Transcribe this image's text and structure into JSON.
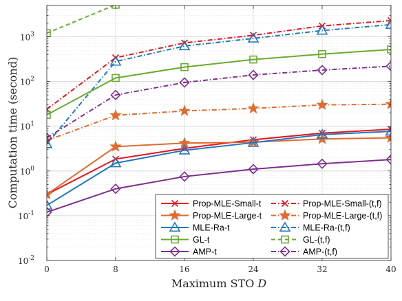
{
  "chart_data": {
    "type": "line",
    "xlabel": "Maximum STO",
    "xlabel_var": "D",
    "ylabel": "Computation time (second)",
    "x": [
      0,
      8,
      16,
      24,
      32,
      40
    ],
    "x_ticks": [
      "0",
      "8",
      "16",
      "24",
      "32",
      "40"
    ],
    "y_scale": "log",
    "xlim": [
      0,
      40
    ],
    "ylim": [
      0.01,
      5000
    ],
    "y_ticks": [
      {
        "base": "10",
        "exp": "-2",
        "value": 0.01
      },
      {
        "base": "10",
        "exp": "-1",
        "value": 0.1
      },
      {
        "base": "10",
        "exp": "0",
        "value": 1
      },
      {
        "base": "10",
        "exp": "1",
        "value": 10
      },
      {
        "base": "10",
        "exp": "2",
        "value": 100
      },
      {
        "base": "10",
        "exp": "3",
        "value": 1000
      }
    ],
    "grid": true,
    "legend_position": "bottom-right",
    "series": [
      {
        "name": "Prop-MLE-Small-t",
        "color": "#e8141c",
        "dash": "solid",
        "marker": "x",
        "values": [
          0.3,
          1.85,
          3.2,
          5.0,
          7.0,
          8.6
        ]
      },
      {
        "name": "Prop-MLE-Small-(t,f)",
        "color": "#e8141c",
        "dash": "dashdot",
        "marker": "x",
        "values": [
          24,
          340,
          730,
          1080,
          1750,
          2300
        ]
      },
      {
        "name": "Prop-MLE-Large-t",
        "color": "#e06a2f",
        "dash": "solid",
        "marker": "star",
        "values": [
          0.3,
          3.5,
          4.2,
          4.4,
          5.2,
          5.5
        ]
      },
      {
        "name": "Prop-MLE-Large-(t,f)",
        "color": "#e06a2f",
        "dash": "dashdot",
        "marker": "star",
        "values": [
          4.8,
          17.5,
          22,
          25,
          30,
          31
        ]
      },
      {
        "name": "MLE-Ra-t",
        "color": "#1f78c0",
        "dash": "solid",
        "marker": "triangle",
        "values": [
          0.17,
          1.5,
          2.9,
          4.3,
          6.5,
          7.7
        ]
      },
      {
        "name": "MLE-Ra-(t,f)",
        "color": "#1f78c0",
        "dash": "dashdot",
        "marker": "triangle",
        "values": [
          4.0,
          280,
          620,
          920,
          1380,
          1870
        ]
      },
      {
        "name": "GL-t",
        "color": "#6aaa30",
        "dash": "solid",
        "marker": "square",
        "values": [
          18,
          120,
          210,
          310,
          410,
          520
        ]
      },
      {
        "name": "GL-(t,f)",
        "color": "#6aaa30",
        "dash": "dash",
        "marker": "square",
        "values": [
          1200,
          5200,
          null,
          null,
          null,
          null
        ]
      },
      {
        "name": "AMP-t",
        "color": "#7e2f8e",
        "dash": "solid",
        "marker": "diamond",
        "values": [
          0.12,
          0.4,
          0.75,
          1.1,
          1.45,
          1.8
        ]
      },
      {
        "name": "AMP-(t,f)",
        "color": "#7e2f8e",
        "dash": "dashdot",
        "marker": "diamond",
        "values": [
          5.5,
          50,
          95,
          140,
          180,
          220
        ]
      }
    ]
  }
}
